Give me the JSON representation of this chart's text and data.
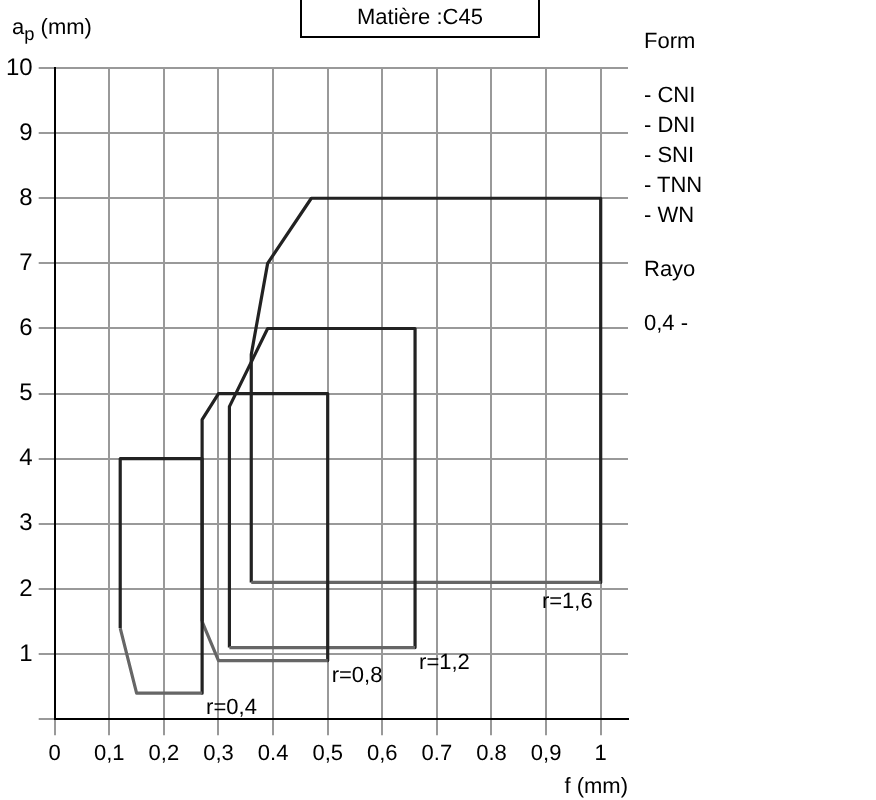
{
  "chart_data": {
    "type": "line",
    "title": "Matière :C45",
    "ylabel": "a$_{p}$ (mm)",
    "xlabel": "f (mm)",
    "annotations": [
      "Form",
      "- CNI",
      "- DNI",
      "- SNI",
      "- TNN",
      "- WN",
      "Rayo",
      "0,4 -"
    ],
    "xlim": [
      0,
      1.05
    ],
    "ylim": [
      0,
      10
    ],
    "xticks": [
      0,
      {
        "value": 0.1,
        "label": "0,1"
      },
      {
        "value": 0.2,
        "label": "0,2"
      },
      {
        "value": 0.3,
        "label": "0,3"
      },
      {
        "value": 0.4,
        "label": "0.4"
      },
      {
        "value": 0.5,
        "label": "0,5"
      },
      {
        "value": 0.6,
        "label": "0,6"
      },
      {
        "value": 0.7,
        "label": "0.7"
      },
      {
        "value": 0.8,
        "label": "0.8"
      },
      {
        "value": 0.9,
        "label": "0,9"
      },
      1
    ],
    "yticks": [
      {
        "value": 0,
        "label": null
      },
      1,
      2,
      3,
      4,
      5,
      6,
      7,
      8,
      9,
      10
    ],
    "grid": true,
    "line_style": "solid",
    "marker": "none",
    "series": [
      {
        "name": "r=0,4",
        "color": "#666666",
        "x": [
          0.12,
          0.15,
          0.27
        ],
        "values": [
          1.4,
          0.4,
          0.4
        ]
      },
      {
        "color": "#222222",
        "x": [
          0.12,
          0.12,
          0.27,
          0.27
        ],
        "values": [
          1.4,
          4,
          4,
          0.4
        ]
      },
      {
        "name": "r=0,8",
        "color": "#666666",
        "x": [
          0.27,
          0.3,
          0.5
        ],
        "values": [
          1.5,
          0.9,
          0.9
        ]
      },
      {
        "color": "#222222",
        "x": [
          0.27,
          0.27,
          0.3,
          0.5,
          0.5
        ],
        "values": [
          1.5,
          4.6,
          5,
          5,
          0.9
        ]
      },
      {
        "name": "r=1,2",
        "color": "#666666",
        "x": [
          0.32,
          0.66
        ],
        "values": [
          1.1,
          1.1
        ]
      },
      {
        "color": "#222222",
        "x": [
          0.32,
          0.32,
          0.39,
          0.66,
          0.66
        ],
        "values": [
          1.1,
          4.8,
          6,
          6,
          1.1
        ]
      },
      {
        "name": "r=1,6",
        "color": "#666666",
        "x": [
          0.36,
          1
        ],
        "values": [
          2.1,
          2.1
        ]
      },
      {
        "color": "#222222",
        "x": [
          0.36,
          0.36,
          0.39,
          0.47,
          1,
          1
        ],
        "values": [
          2.1,
          5.6,
          7,
          8,
          8,
          2.1
        ]
      }
    ]
  }
}
